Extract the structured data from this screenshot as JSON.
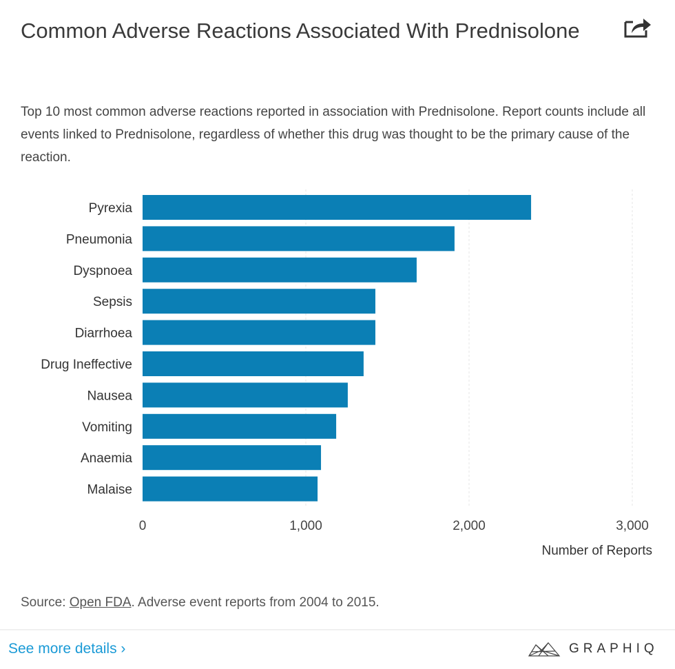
{
  "header": {
    "title": "Common Adverse Reactions Associated With Prednisolone",
    "subtitle": "Top 10 most common adverse reactions reported in association with Prednisolone. Report counts include all events linked to Prednisolone, regardless of whether this drug was thought to be the primary cause of the reaction.",
    "share_icon": "share-icon"
  },
  "chart_data": {
    "type": "bar",
    "orientation": "horizontal",
    "categories": [
      "Pyrexia",
      "Pneumonia",
      "Dyspnoea",
      "Sepsis",
      "Diarrhoea",
      "Drug Ineffective",
      "Nausea",
      "Vomiting",
      "Anaemia",
      "Malaise"
    ],
    "values": [
      2380,
      1911,
      1679,
      1426,
      1426,
      1354,
      1257,
      1186,
      1093,
      1072
    ],
    "xlabel": "Number of Reports",
    "xlim": [
      0,
      3000
    ],
    "xticks": [
      "0",
      "1,000",
      "2,000",
      "3,000"
    ],
    "grid": true,
    "bar_color": "#0b7fb5"
  },
  "footer": {
    "source_prefix": "Source: ",
    "source_link": "Open FDA",
    "source_suffix": ". Adverse event reports from 2004 to 2015.",
    "see_more": "See more details ›",
    "logo_text": "GRAPHIQ",
    "link_color": "#1a9ad6"
  }
}
